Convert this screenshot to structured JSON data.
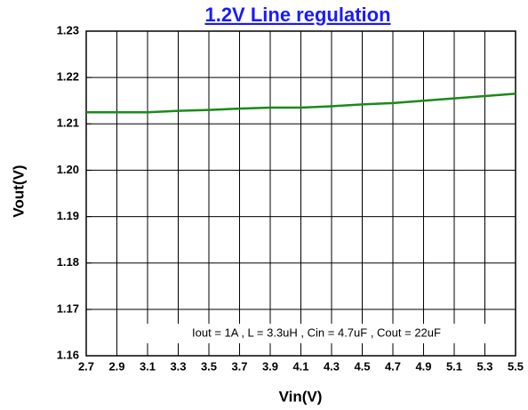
{
  "chart_data": {
    "type": "line",
    "title": "1.2V Line regulation",
    "x_label": "Vin(V)",
    "y_label": "Vout(V)",
    "annotation": "Iout = 1A , L = 3.3uH , Cin = 4.7uF , Cout = 22uF",
    "x": [
      2.7,
      2.9,
      3.1,
      3.3,
      3.5,
      3.7,
      3.9,
      4.1,
      4.3,
      4.5,
      4.7,
      4.9,
      5.1,
      5.3,
      5.5
    ],
    "series": [
      {
        "color": "#1a8a1a",
        "values": [
          1.2125,
          1.2125,
          1.2125,
          1.2128,
          1.213,
          1.2133,
          1.2135,
          1.2135,
          1.2138,
          1.2142,
          1.2145,
          1.215,
          1.2155,
          1.216,
          1.2165
        ]
      }
    ],
    "xlim": [
      2.7,
      5.5
    ],
    "xticks": [
      2.7,
      2.9,
      3.1,
      3.3,
      3.5,
      3.7,
      3.9,
      4.1,
      4.3,
      4.5,
      4.7,
      4.9,
      5.1,
      5.3,
      5.5
    ],
    "ylim": [
      1.16,
      1.23
    ],
    "yticks": [
      {
        "value": 1.16,
        "label": "1.16"
      },
      {
        "value": 1.17,
        "label": "1.17"
      },
      {
        "value": 1.18,
        "label": "1.18"
      },
      {
        "value": 1.19,
        "label": "1.19"
      },
      {
        "value": 1.2,
        "label": "1.20"
      },
      {
        "value": 1.21,
        "label": "1.21"
      },
      {
        "value": 1.22,
        "label": "1.22"
      },
      {
        "value": 1.23,
        "label": "1.23"
      }
    ],
    "grid": true
  }
}
